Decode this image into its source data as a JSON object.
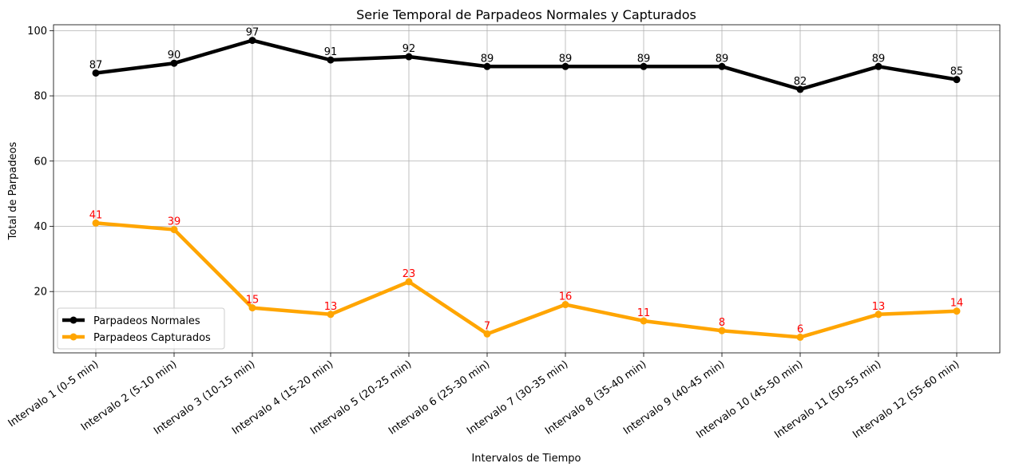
{
  "chart_data": {
    "type": "line",
    "title": "Serie Temporal de Parpadeos Normales y Capturados",
    "xlabel": "Intervalos de Tiempo",
    "ylabel": "Total de Parpadeos",
    "ylim": [
      1.2,
      101.8
    ],
    "yticks": [
      20,
      40,
      60,
      80,
      100
    ],
    "grid": true,
    "legend_position": "lower-left",
    "categories": [
      "Intervalo 1 (0-5 min)",
      "Intervalo 2 (5-10 min)",
      "Intervalo 3 (10-15 min)",
      "Intervalo 4 (15-20 min)",
      "Intervalo 5 (20-25 min)",
      "Intervalo 6 (25-30 min)",
      "Intervalo 7 (30-35 min)",
      "Intervalo 8 (35-40 min)",
      "Intervalo 9 (40-45 min)",
      "Intervalo 10 (45-50 min)",
      "Intervalo 11 (50-55 min)",
      "Intervalo 12 (55-60 min)"
    ],
    "series": [
      {
        "name": "Parpadeos Normales",
        "color": "#000000",
        "label_color": "#000000",
        "values": [
          87,
          90,
          97,
          91,
          92,
          89,
          89,
          89,
          89,
          82,
          89,
          85
        ]
      },
      {
        "name": "Parpadeos Capturados",
        "color": "#ffa500",
        "label_color": "#ff0000",
        "values": [
          41,
          39,
          15,
          13,
          23,
          7,
          16,
          11,
          8,
          6,
          13,
          14
        ]
      }
    ]
  }
}
